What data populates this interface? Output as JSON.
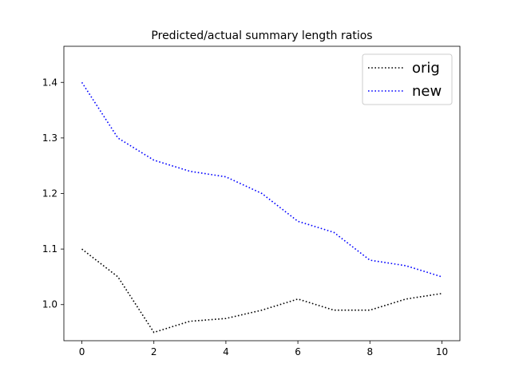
{
  "chart_data": {
    "type": "line",
    "title": "Predicted/actual summary length ratios",
    "xlabel": "",
    "ylabel": "",
    "x": [
      0,
      1,
      2,
      3,
      4,
      5,
      6,
      7,
      8,
      9,
      10
    ],
    "xlim": [
      -0.5,
      10.5
    ],
    "ylim": [
      0.935,
      1.465
    ],
    "xticks": [
      0,
      2,
      4,
      6,
      8,
      10
    ],
    "yticks": [
      1.0,
      1.1,
      1.2,
      1.3,
      1.4
    ],
    "xtick_labels": [
      "0",
      "2",
      "4",
      "6",
      "8",
      "10"
    ],
    "ytick_labels": [
      "1.0",
      "1.1",
      "1.2",
      "1.3",
      "1.4"
    ],
    "grid": false,
    "legend_position": "top-right",
    "series": [
      {
        "name": "orig",
        "color": "#000000",
        "style": "dotted",
        "values": [
          1.1,
          1.05,
          0.95,
          0.97,
          0.975,
          0.99,
          1.01,
          0.99,
          0.99,
          1.01,
          1.02
        ]
      },
      {
        "name": "new",
        "color": "#0000ff",
        "style": "dotted",
        "values": [
          1.4,
          1.3,
          1.26,
          1.24,
          1.23,
          1.2,
          1.15,
          1.13,
          1.08,
          1.07,
          1.05
        ]
      }
    ]
  }
}
